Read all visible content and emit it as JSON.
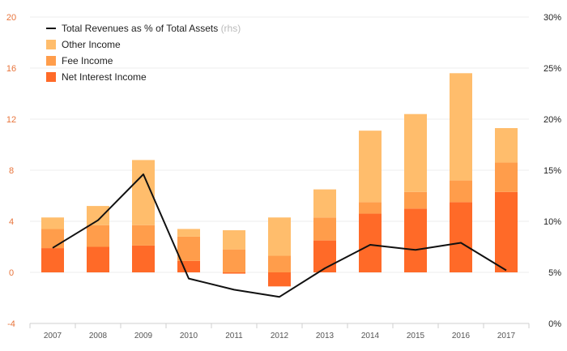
{
  "chart_data": {
    "type": "bar",
    "stacked": true,
    "categories": [
      "2007",
      "2008",
      "2009",
      "2010",
      "2011",
      "2012",
      "2013",
      "2014",
      "2015",
      "2016",
      "2017"
    ],
    "series": [
      {
        "name": "Net Interest Income",
        "color": "#ff6a28",
        "values": [
          1.9,
          2.0,
          2.1,
          0.9,
          -0.1,
          -1.1,
          2.5,
          4.6,
          5.0,
          5.5,
          6.3
        ]
      },
      {
        "name": "Fee Income",
        "color": "#ff9d4b",
        "values": [
          1.5,
          1.7,
          1.6,
          1.9,
          1.8,
          1.3,
          1.8,
          0.9,
          1.3,
          1.7,
          2.3
        ]
      },
      {
        "name": "Other Income",
        "color": "#ffbd6c",
        "values": [
          0.9,
          1.5,
          5.1,
          0.6,
          1.5,
          3.0,
          2.2,
          5.6,
          6.1,
          8.4,
          2.7
        ]
      }
    ],
    "line": {
      "name": "Total Revenues as % of Total Assets",
      "name_suffix": "(rhs)",
      "color": "#111111",
      "values": [
        7.4,
        10.1,
        14.6,
        4.4,
        3.3,
        2.6,
        5.4,
        7.7,
        7.2,
        7.9,
        5.2
      ]
    },
    "y_left": {
      "min": -4,
      "max": 20,
      "ticks": [
        "-4",
        "0",
        "4",
        "8",
        "12",
        "16",
        "20"
      ],
      "color": "#e8743b"
    },
    "y_right": {
      "min": 0,
      "max": 30,
      "ticks": [
        "0%",
        "5%",
        "10%",
        "15%",
        "20%",
        "25%",
        "30%"
      ]
    },
    "legend_position": "top-left",
    "grid": "horizontal"
  }
}
